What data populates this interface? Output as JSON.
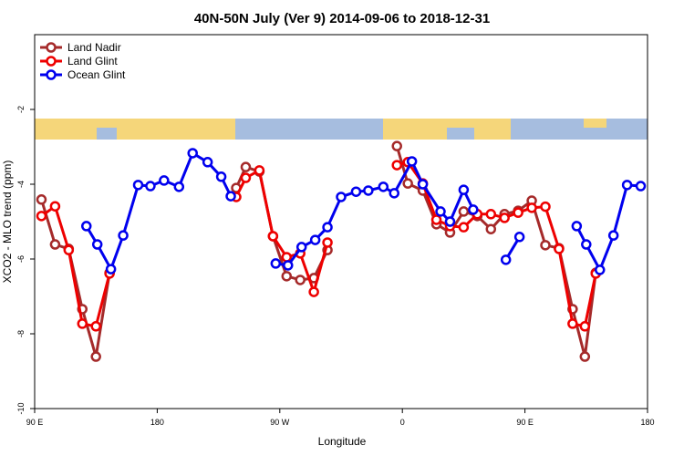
{
  "chart_data": {
    "type": "line",
    "title": "40N-50N July (Ver 9)   2014-09-06 to 2018-12-31",
    "x_label": "Longitude",
    "y_label": "XCO2 - MLO trend (ppm)",
    "xlim": [
      90,
      540
    ],
    "ylim": [
      -10,
      0
    ],
    "xticks": [
      {
        "value": 90,
        "label": "90 E"
      },
      {
        "value": 180,
        "label": "180"
      },
      {
        "value": 270,
        "label": "90 W"
      },
      {
        "value": 360,
        "label": "0"
      },
      {
        "value": 450,
        "label": "90 E"
      },
      {
        "value": 540,
        "label": "180"
      }
    ],
    "yticks": [
      -10,
      -8,
      -6,
      -4,
      -2
    ],
    "legend": "top-left",
    "series": [
      {
        "name": "Land Nadir",
        "color": "#a52a2a",
        "x": [
          95,
          105,
          115,
          125,
          135,
          145,
          null,
          238,
          245,
          255,
          265,
          275,
          285,
          295,
          305,
          null,
          356,
          364,
          375,
          385,
          395,
          405,
          415,
          425,
          435,
          445,
          455,
          465,
          475,
          485,
          494,
          502
        ],
        "values": [
          -4.41,
          -5.61,
          -5.73,
          -7.34,
          -8.61,
          -6.37,
          null,
          -4.1,
          -3.54,
          -3.66,
          -5.39,
          -6.46,
          -6.56,
          -6.51,
          -5.76,
          null,
          -2.98,
          -3.98,
          -4.17,
          -5.07,
          -5.29,
          -4.73,
          -4.85,
          -5.2,
          -4.8,
          -4.71,
          -4.44,
          -5.63,
          -5.71,
          -7.34,
          -8.61,
          -6.37
        ]
      },
      {
        "name": "Land Glint",
        "color": "#ee0000",
        "x": [
          95,
          105,
          115,
          125,
          135,
          145,
          null,
          238,
          245,
          255,
          265,
          275,
          285,
          295,
          305,
          null,
          356,
          364,
          375,
          385,
          395,
          405,
          415,
          425,
          435,
          445,
          455,
          465,
          475,
          485,
          494,
          502
        ],
        "values": [
          -4.85,
          -4.59,
          -5.76,
          -7.73,
          -7.8,
          -6.39,
          null,
          -4.34,
          -3.83,
          -3.63,
          -5.39,
          -5.95,
          -5.85,
          -6.88,
          -5.56,
          null,
          -3.49,
          -3.41,
          -3.98,
          -4.95,
          -5.12,
          -5.15,
          -4.8,
          -4.8,
          -4.9,
          -4.76,
          -4.63,
          -4.6,
          -5.73,
          -7.73,
          -7.8,
          -6.39
        ]
      },
      {
        "name": "Ocean Glint",
        "color": "#0000ee",
        "x": [
          128,
          136,
          146,
          155,
          166,
          175,
          185,
          196,
          206,
          217,
          227,
          234,
          null,
          267,
          276,
          286,
          296,
          305,
          315,
          326,
          335,
          346,
          354,
          367,
          375,
          388,
          395,
          405,
          412,
          null,
          436,
          446,
          null,
          488,
          495,
          505,
          515,
          525,
          535
        ],
        "values": [
          -5.12,
          -5.61,
          -6.27,
          -5.37,
          -4.02,
          -4.05,
          -3.9,
          -4.07,
          -3.17,
          -3.41,
          -3.8,
          -4.32,
          null,
          -6.12,
          -6.17,
          -5.68,
          -5.49,
          -5.15,
          -4.34,
          -4.2,
          -4.17,
          -4.07,
          -4.24,
          -3.39,
          -4.0,
          -4.73,
          -5.0,
          -4.15,
          -4.68,
          null,
          -6.02,
          -5.41,
          null,
          -5.12,
          -5.61,
          -6.29,
          -5.37,
          -4.02,
          -4.05
        ]
      }
    ]
  }
}
